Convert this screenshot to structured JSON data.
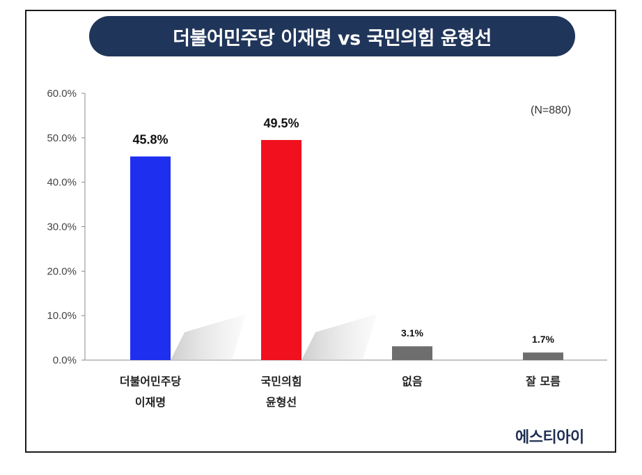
{
  "title": "더불어민주당 이재명 vs 국민의힘 윤형선",
  "sample_note": "(N=880)",
  "source_logo": "에스티아이",
  "colors": {
    "title_bg": "#20355a",
    "candidate_1": "#1f2ff0",
    "candidate_2": "#f0101e",
    "other": "#6e6e6e"
  },
  "chart_data": {
    "type": "bar",
    "title": "더불어민주당 이재명 vs 국민의힘 윤형선",
    "categories": [
      [
        "더불어민주당",
        "이재명"
      ],
      [
        "국민의힘",
        "윤형선"
      ],
      [
        "없음"
      ],
      [
        "잘 모름"
      ]
    ],
    "values": [
      45.8,
      49.5,
      3.1,
      1.7
    ],
    "value_labels": [
      "45.8%",
      "49.5%",
      "3.1%",
      "1.7%"
    ],
    "ylim": [
      0,
      60
    ],
    "yticks": [
      "0.0%",
      "10.0%",
      "20.0%",
      "30.0%",
      "40.0%",
      "50.0%",
      "60.0%"
    ],
    "xlabel": "",
    "ylabel": "",
    "grid": false
  }
}
